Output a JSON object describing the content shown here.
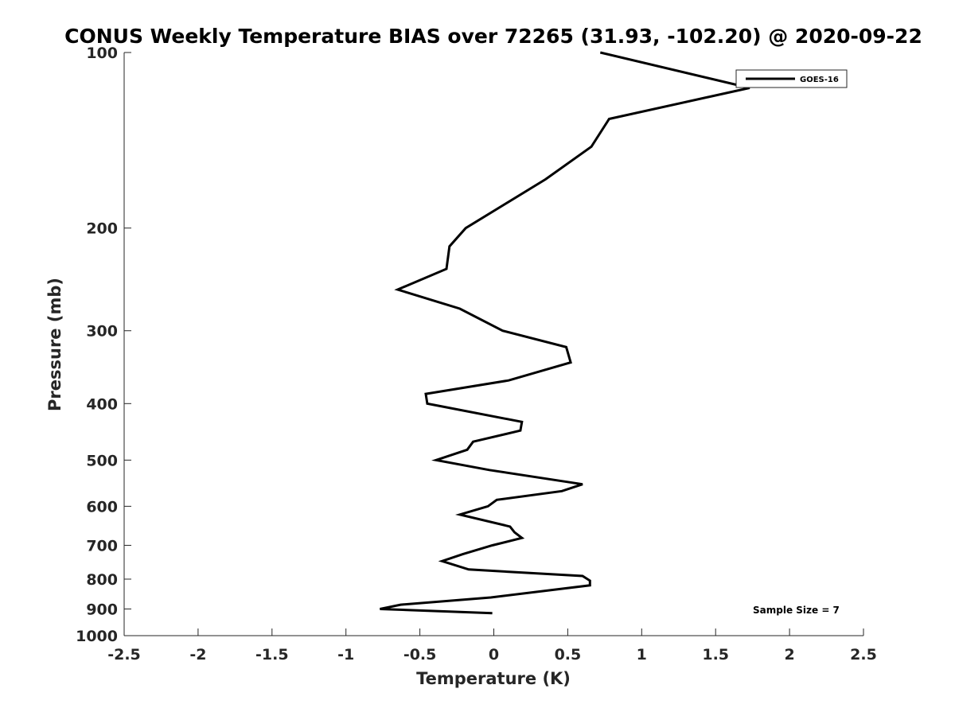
{
  "chart_data": {
    "type": "line",
    "title": "CONUS Weekly Temperature BIAS over 72265 (31.93, -102.20) @ 2020-09-22",
    "xlabel": "Temperature (K)",
    "ylabel": "Pressure (mb)",
    "xlim": [
      -2.5,
      2.5
    ],
    "ylim": [
      100,
      1000
    ],
    "y_scale": "log",
    "y_reversed": true,
    "x_ticks": [
      -2.5,
      -2,
      -1.5,
      -1,
      -0.5,
      0,
      0.5,
      1,
      1.5,
      2,
      2.5
    ],
    "x_tick_labels": [
      "-2.5",
      "-2",
      "-1.5",
      "-1",
      "-0.5",
      "0",
      "0.5",
      "1",
      "1.5",
      "2",
      "2.5"
    ],
    "y_ticks": [
      100,
      200,
      300,
      400,
      500,
      600,
      700,
      800,
      900,
      1000
    ],
    "y_tick_labels": [
      "100",
      "200",
      "300",
      "400",
      "500",
      "600",
      "700",
      "800",
      "900",
      "1000"
    ],
    "grid": false,
    "legend_position": "top-right",
    "series": [
      {
        "name": "GOES-16",
        "color": "#000000",
        "points": [
          [
            0.72,
            100
          ],
          [
            1.73,
            115
          ],
          [
            0.78,
            130
          ],
          [
            0.66,
            145
          ],
          [
            0.35,
            165
          ],
          [
            -0.19,
            200
          ],
          [
            -0.3,
            215
          ],
          [
            -0.32,
            235
          ],
          [
            -0.65,
            255
          ],
          [
            -0.23,
            275
          ],
          [
            0.06,
            300
          ],
          [
            0.49,
            320
          ],
          [
            0.52,
            340
          ],
          [
            0.1,
            365
          ],
          [
            -0.46,
            385
          ],
          [
            -0.45,
            400
          ],
          [
            0.19,
            430
          ],
          [
            0.18,
            445
          ],
          [
            -0.14,
            465
          ],
          [
            -0.18,
            480
          ],
          [
            -0.39,
            500
          ],
          [
            -0.03,
            520
          ],
          [
            0.6,
            550
          ],
          [
            0.46,
            565
          ],
          [
            0.02,
            585
          ],
          [
            -0.04,
            600
          ],
          [
            -0.23,
            620
          ],
          [
            0.11,
            650
          ],
          [
            0.14,
            665
          ],
          [
            0.19,
            680
          ],
          [
            -0.01,
            700
          ],
          [
            -0.21,
            725
          ],
          [
            -0.35,
            745
          ],
          [
            -0.17,
            770
          ],
          [
            0.6,
            790
          ],
          [
            0.65,
            805
          ],
          [
            0.65,
            820
          ],
          [
            -0.02,
            860
          ],
          [
            -0.63,
            885
          ],
          [
            -0.77,
            900
          ],
          [
            -0.01,
            915
          ]
        ]
      }
    ],
    "annotations": [
      "Sample Size = 7"
    ]
  }
}
